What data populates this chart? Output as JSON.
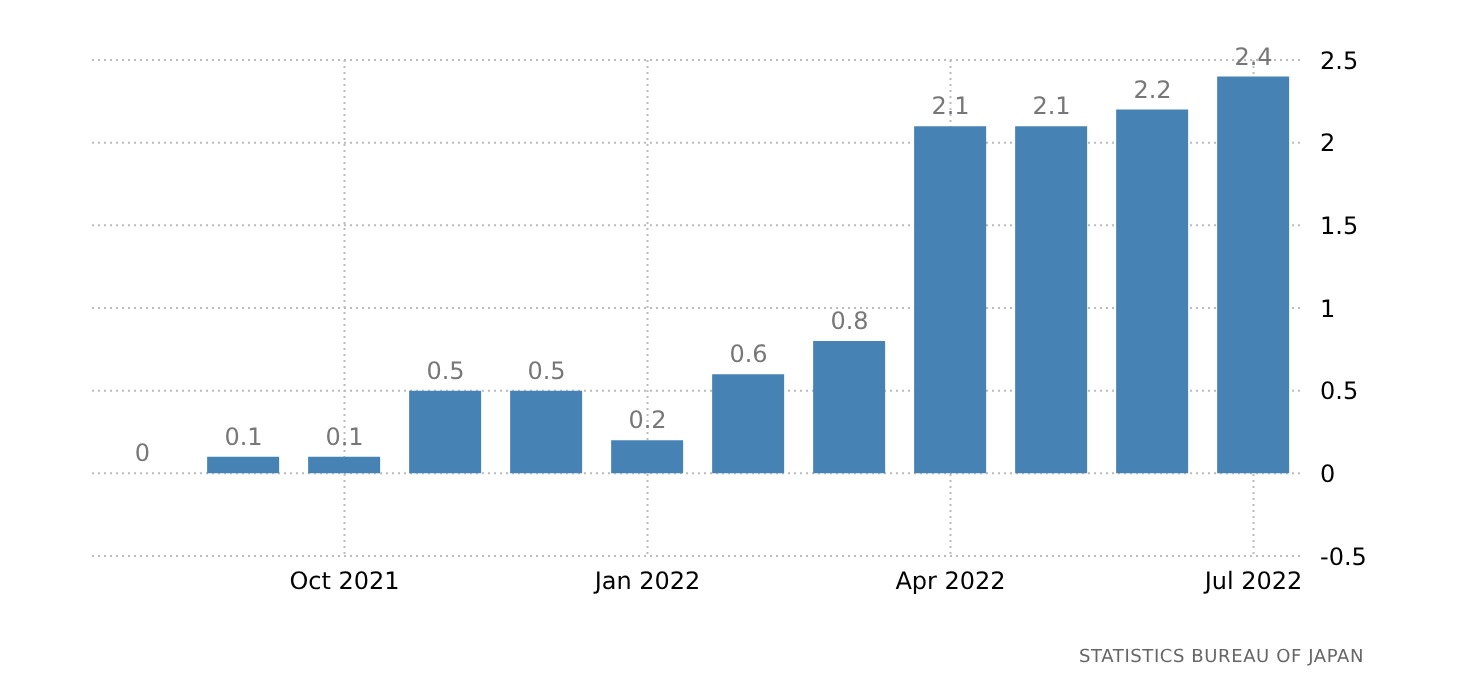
{
  "chart_data": {
    "type": "bar",
    "categories": [
      null,
      null,
      "Oct 2021",
      null,
      null,
      "Jan 2022",
      null,
      null,
      "Apr 2022",
      null,
      null,
      "Jul 2022"
    ],
    "values": [
      0,
      0.1,
      0.1,
      0.5,
      0.5,
      0.2,
      0.6,
      0.8,
      2.1,
      2.1,
      2.2,
      2.4
    ],
    "color": "#4682b4",
    "ylim": [
      -0.5,
      2.5
    ],
    "yticks": [
      -0.5,
      0,
      0.5,
      1,
      1.5,
      2,
      2.5
    ],
    "grid": true,
    "data_labels": true,
    "annotations": [
      "STATISTICS BUREAU OF JAPAN"
    ]
  }
}
